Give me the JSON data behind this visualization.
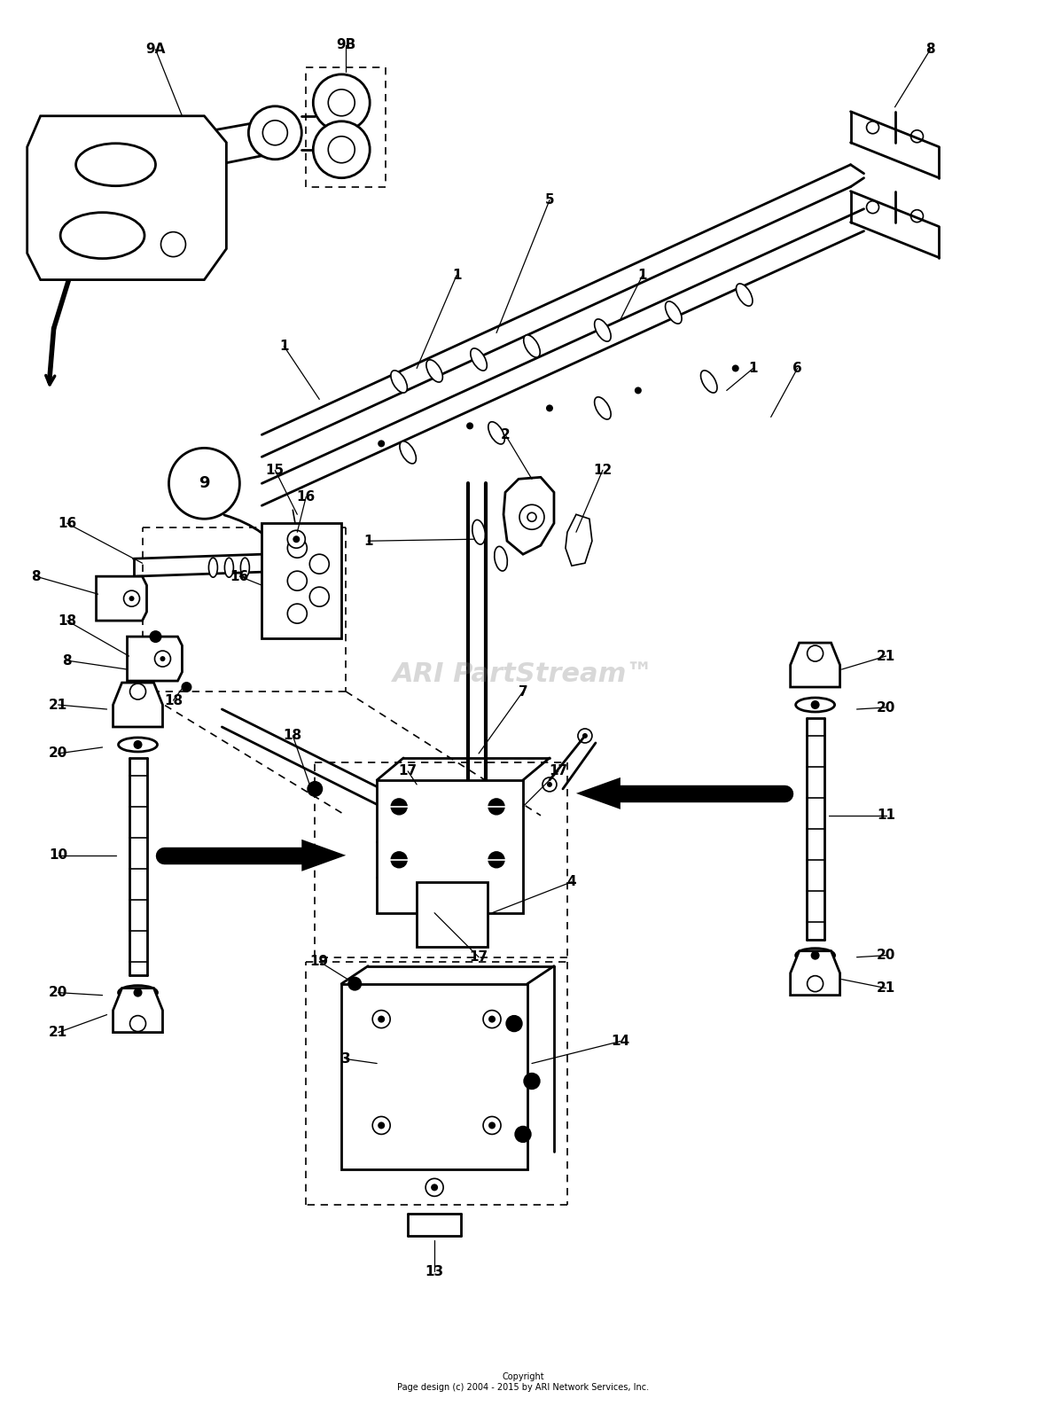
{
  "bg_color": "#ffffff",
  "fig_width": 11.8,
  "fig_height": 16.04,
  "watermark": "ARI PartStream™",
  "copyright_text": "Copyright\nPage design (c) 2004 - 2015 by ARI Network Services, Inc."
}
